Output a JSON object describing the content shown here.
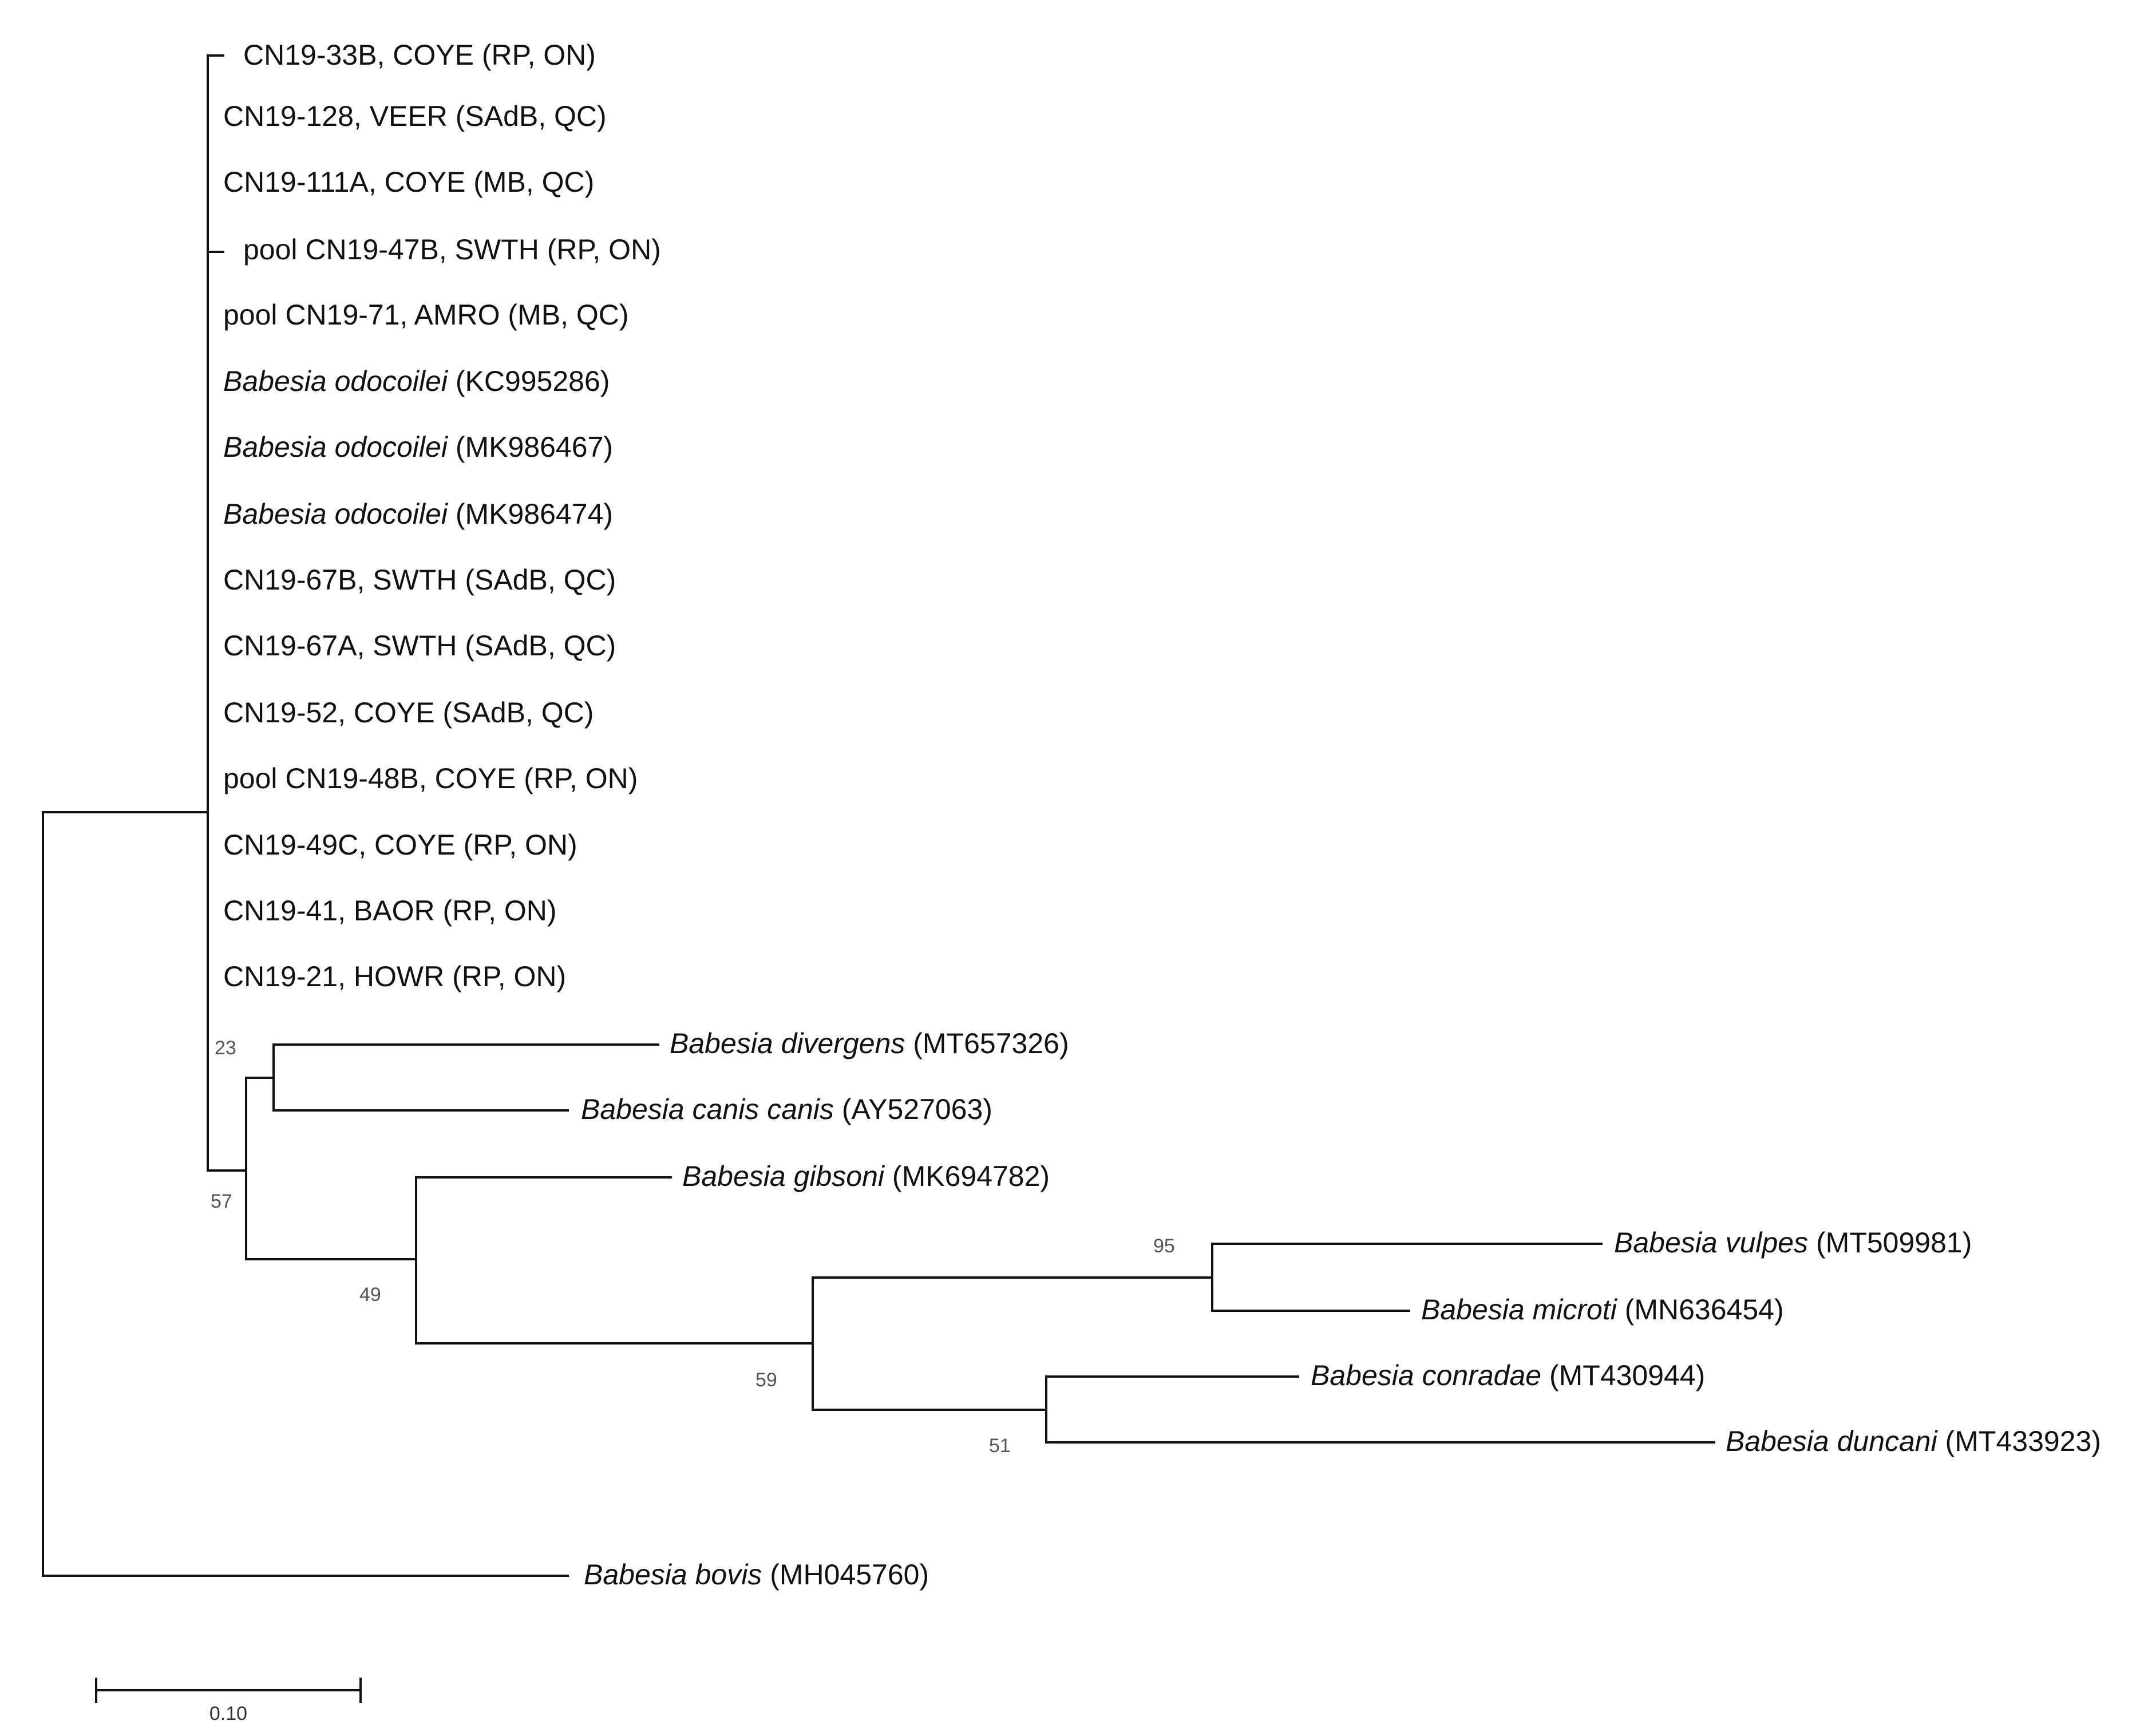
{
  "figure": {
    "type": "phylogenetic-tree",
    "scale_bar_label": "0.10",
    "scale_bar_value": 0.1
  },
  "leaves": [
    {
      "id": "cn19-33b",
      "species": "",
      "text": "CN19-33B, COYE (RP, ON)"
    },
    {
      "id": "cn19-128",
      "species": "",
      "text": "CN19-128, VEER (SAdB, QC)"
    },
    {
      "id": "cn19-111a",
      "species": "",
      "text": "CN19-111A, COYE (MB, QC)"
    },
    {
      "id": "pool-cn19-47b",
      "species": "",
      "text": "pool CN19-47B, SWTH (RP, ON)"
    },
    {
      "id": "pool-cn19-71",
      "species": "",
      "text": "pool CN19-71, AMRO (MB, QC)"
    },
    {
      "id": "b-odocoilei-kc995286",
      "species": "Babesia odocoilei",
      "text": " (KC995286)"
    },
    {
      "id": "b-odocoilei-mk986467",
      "species": "Babesia odocoilei",
      "text": " (MK986467)"
    },
    {
      "id": "b-odocoilei-mk986474",
      "species": "Babesia odocoilei",
      "text": " (MK986474)"
    },
    {
      "id": "cn19-67b",
      "species": "",
      "text": "CN19-67B, SWTH (SAdB, QC)"
    },
    {
      "id": "cn19-67a",
      "species": "",
      "text": "CN19-67A, SWTH (SAdB, QC)"
    },
    {
      "id": "cn19-52",
      "species": "",
      "text": "CN19-52, COYE (SAdB, QC)"
    },
    {
      "id": "pool-cn19-48b",
      "species": "",
      "text": "pool CN19-48B, COYE (RP, ON)"
    },
    {
      "id": "cn19-49c",
      "species": "",
      "text": "CN19-49C, COYE (RP, ON)"
    },
    {
      "id": "cn19-41",
      "species": "",
      "text": "CN19-41, BAOR (RP, ON)"
    },
    {
      "id": "cn19-21",
      "species": "",
      "text": "CN19-21, HOWR (RP, ON)"
    },
    {
      "id": "b-divergens",
      "species": "Babesia divergens",
      "text": " (MT657326)"
    },
    {
      "id": "b-canis-canis",
      "species": "Babesia canis canis",
      "text": " (AY527063)"
    },
    {
      "id": "b-gibsoni",
      "species": "Babesia gibsoni",
      "text": " (MK694782)"
    },
    {
      "id": "b-vulpes",
      "species": "Babesia vulpes",
      "text": " (MT509981)"
    },
    {
      "id": "b-microti",
      "species": "Babesia microti",
      "text": " (MN636454)"
    },
    {
      "id": "b-conradae",
      "species": "Babesia conradae",
      "text": " (MT430944)"
    },
    {
      "id": "b-duncani",
      "species": "Babesia duncani",
      "text": " (MT433923)"
    },
    {
      "id": "b-bovis",
      "species": "Babesia bovis",
      "text": " (MH045760)"
    }
  ],
  "support_values": [
    {
      "node": "divergens-canis",
      "value": "23"
    },
    {
      "node": "divergens-canis-plus-rest",
      "value": "57"
    },
    {
      "node": "gibsoni-plus-rest",
      "value": "49"
    },
    {
      "node": "vulpes-microti",
      "value": "95"
    },
    {
      "node": "microti-conradae-clade",
      "value": "59"
    },
    {
      "node": "conradae-duncani",
      "value": "51"
    }
  ]
}
